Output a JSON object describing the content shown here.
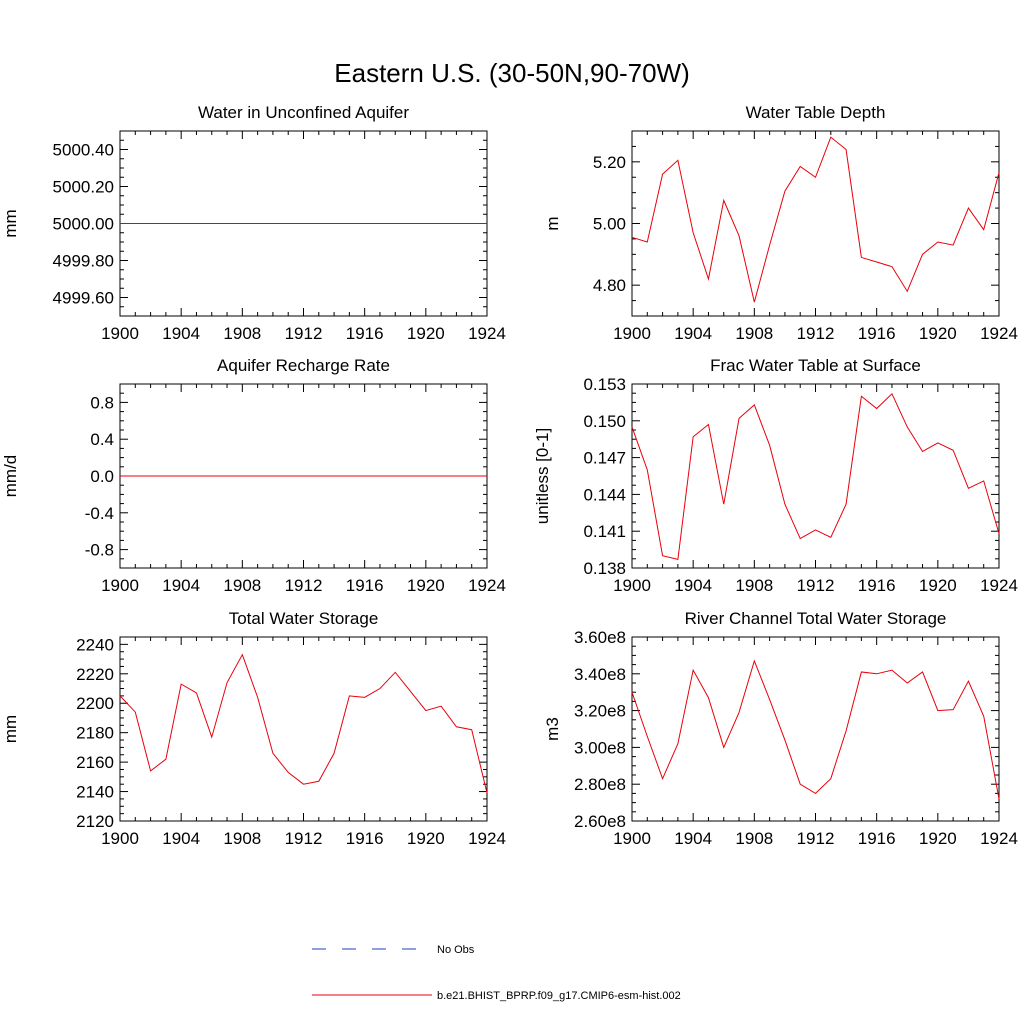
{
  "title": "Eastern U.S. (30-50N,90-70W)",
  "colors": {
    "model": "#e8000b",
    "obs": "#1f3fbf",
    "axis": "#000000"
  },
  "legend": {
    "items": [
      {
        "label": "No Obs",
        "style": "dashed",
        "color": "#1f3fbf"
      },
      {
        "label": "b.e21.BHIST_BPRP.f09_g17.CMIP6-esm-hist.002",
        "style": "solid",
        "color": "#e8000b"
      }
    ]
  },
  "chart_data": [
    {
      "type": "line",
      "title": "Water in Unconfined Aquifer",
      "ylabel": "mm",
      "xlim": [
        1900,
        1924
      ],
      "ylim": [
        4999.5,
        5000.5
      ],
      "xticks": [
        1900,
        1904,
        1908,
        1912,
        1916,
        1920,
        1924
      ],
      "yticks": [
        4999.6,
        4999.8,
        5000.0,
        5000.2,
        5000.4
      ],
      "ytick_labels": [
        "4999.60",
        "4999.80",
        "5000.00",
        "5000.20",
        "5000.40"
      ],
      "x": [
        1900,
        1901,
        1902,
        1903,
        1904,
        1905,
        1906,
        1907,
        1908,
        1909,
        1910,
        1911,
        1912,
        1913,
        1914,
        1915,
        1916,
        1917,
        1918,
        1919,
        1920,
        1921,
        1922,
        1923,
        1924
      ],
      "series": [
        {
          "name": "b.e21.BHIST_BPRP.f09_g17.CMIP6-esm-hist.002",
          "values": [
            5000,
            5000,
            5000,
            5000,
            5000,
            5000,
            5000,
            5000,
            5000,
            5000,
            5000,
            5000,
            5000,
            5000,
            5000,
            5000,
            5000,
            5000,
            5000,
            5000,
            5000,
            5000,
            5000,
            5000,
            5000
          ]
        }
      ]
    },
    {
      "type": "line",
      "title": "Water Table Depth",
      "ylabel": "m",
      "xlim": [
        1900,
        1924
      ],
      "ylim": [
        4.7,
        5.3
      ],
      "xticks": [
        1900,
        1904,
        1908,
        1912,
        1916,
        1920,
        1924
      ],
      "yticks": [
        4.8,
        5.0,
        5.2
      ],
      "ytick_labels": [
        "4.80",
        "5.00",
        "5.20"
      ],
      "x": [
        1900,
        1901,
        1902,
        1903,
        1904,
        1905,
        1906,
        1907,
        1908,
        1909,
        1910,
        1911,
        1912,
        1913,
        1914,
        1915,
        1916,
        1917,
        1918,
        1919,
        1920,
        1921,
        1922,
        1923,
        1924
      ],
      "series": [
        {
          "name": "b.e21.BHIST_BPRP.f09_g17.CMIP6-esm-hist.002",
          "values": [
            4.955,
            4.94,
            5.16,
            5.205,
            4.97,
            4.82,
            5.075,
            4.96,
            4.745,
            4.93,
            5.105,
            5.185,
            5.15,
            5.28,
            5.24,
            4.89,
            4.875,
            4.86,
            4.78,
            4.9,
            4.94,
            4.93,
            5.05,
            4.98,
            5.165
          ]
        }
      ]
    },
    {
      "type": "line",
      "title": "Aquifer Recharge Rate",
      "ylabel": "mm/d",
      "xlim": [
        1900,
        1924
      ],
      "ylim": [
        -1.0,
        1.0
      ],
      "xticks": [
        1900,
        1904,
        1908,
        1912,
        1916,
        1920,
        1924
      ],
      "yticks": [
        -0.8,
        -0.4,
        0.0,
        0.4,
        0.8
      ],
      "ytick_labels": [
        "-0.8",
        "-0.4",
        "0.0",
        "0.4",
        "0.8"
      ],
      "x": [
        1900,
        1901,
        1902,
        1903,
        1904,
        1905,
        1906,
        1907,
        1908,
        1909,
        1910,
        1911,
        1912,
        1913,
        1914,
        1915,
        1916,
        1917,
        1918,
        1919,
        1920,
        1921,
        1922,
        1923,
        1924
      ],
      "series": [
        {
          "name": "b.e21.BHIST_BPRP.f09_g17.CMIP6-esm-hist.002",
          "values": [
            0,
            0,
            0,
            0,
            0,
            0,
            0,
            0,
            0,
            0,
            0,
            0,
            0,
            0,
            0,
            0,
            0,
            0,
            0,
            0,
            0,
            0,
            0,
            0,
            0
          ]
        }
      ]
    },
    {
      "type": "line",
      "title": "Frac Water Table at Surface",
      "ylabel": "unitless [0-1]",
      "xlim": [
        1900,
        1924
      ],
      "ylim": [
        0.138,
        0.153
      ],
      "xticks": [
        1900,
        1904,
        1908,
        1912,
        1916,
        1920,
        1924
      ],
      "yticks": [
        0.138,
        0.141,
        0.144,
        0.147,
        0.15,
        0.153
      ],
      "ytick_labels": [
        "0.138",
        "0.141",
        "0.144",
        "0.147",
        "0.150",
        "0.153"
      ],
      "x": [
        1900,
        1901,
        1902,
        1903,
        1904,
        1905,
        1906,
        1907,
        1908,
        1909,
        1910,
        1911,
        1912,
        1913,
        1914,
        1915,
        1916,
        1917,
        1918,
        1919,
        1920,
        1921,
        1922,
        1923,
        1924
      ],
      "series": [
        {
          "name": "b.e21.BHIST_BPRP.f09_g17.CMIP6-esm-hist.002",
          "values": [
            0.1495,
            0.146,
            0.139,
            0.1387,
            0.1487,
            0.1497,
            0.1432,
            0.1502,
            0.1513,
            0.148,
            0.1432,
            0.1404,
            0.1411,
            0.1405,
            0.1432,
            0.152,
            0.151,
            0.1522,
            0.1495,
            0.1475,
            0.1482,
            0.1476,
            0.1445,
            0.1451,
            0.1408
          ]
        }
      ]
    },
    {
      "type": "line",
      "title": "Total Water Storage",
      "ylabel": "mm",
      "xlim": [
        1900,
        1924
      ],
      "ylim": [
        2120,
        2245
      ],
      "xticks": [
        1900,
        1904,
        1908,
        1912,
        1916,
        1920,
        1924
      ],
      "yticks": [
        2120,
        2140,
        2160,
        2180,
        2200,
        2220,
        2240
      ],
      "ytick_labels": [
        "2120",
        "2140",
        "2160",
        "2180",
        "2200",
        "2220",
        "2240"
      ],
      "x": [
        1900,
        1901,
        1902,
        1903,
        1904,
        1905,
        1906,
        1907,
        1908,
        1909,
        1910,
        1911,
        1912,
        1913,
        1914,
        1915,
        1916,
        1917,
        1918,
        1919,
        1920,
        1921,
        1922,
        1923,
        1924
      ],
      "series": [
        {
          "name": "b.e21.BHIST_BPRP.f09_g17.CMIP6-esm-hist.002",
          "values": [
            2205,
            2194,
            2154,
            2162,
            2213,
            2207,
            2177,
            2214,
            2233,
            2204,
            2166,
            2153,
            2145,
            2147,
            2166,
            2205,
            2204,
            2210,
            2221,
            2208,
            2195,
            2198,
            2184,
            2182,
            2139
          ]
        }
      ]
    },
    {
      "type": "line",
      "title": "River Channel Total Water Storage",
      "ylabel": "m3",
      "xlim": [
        1900,
        1924
      ],
      "ylim": [
        260000000,
        360000000
      ],
      "xticks": [
        1900,
        1904,
        1908,
        1912,
        1916,
        1920,
        1924
      ],
      "yticks": [
        260000000,
        280000000,
        300000000,
        320000000,
        340000000,
        360000000
      ],
      "ytick_labels": [
        "2.60e8",
        "2.80e8",
        "3.00e8",
        "3.20e8",
        "3.40e8",
        "3.60e8"
      ],
      "x": [
        1900,
        1901,
        1902,
        1903,
        1904,
        1905,
        1906,
        1907,
        1908,
        1909,
        1910,
        1911,
        1912,
        1913,
        1914,
        1915,
        1916,
        1917,
        1918,
        1919,
        1920,
        1921,
        1922,
        1923,
        1924
      ],
      "series": [
        {
          "name": "b.e21.BHIST_BPRP.f09_g17.CMIP6-esm-hist.002",
          "values": [
            330000000,
            306000000,
            283000000,
            302000000,
            342000000,
            327000000,
            300000000,
            319000000,
            347000000,
            326000000,
            304000000,
            280000000,
            275000000,
            283000000,
            309000000,
            341000000,
            340000000,
            342000000,
            335000000,
            341000000,
            320000000,
            320500000,
            336000000,
            317000000,
            272000000
          ]
        }
      ]
    }
  ]
}
